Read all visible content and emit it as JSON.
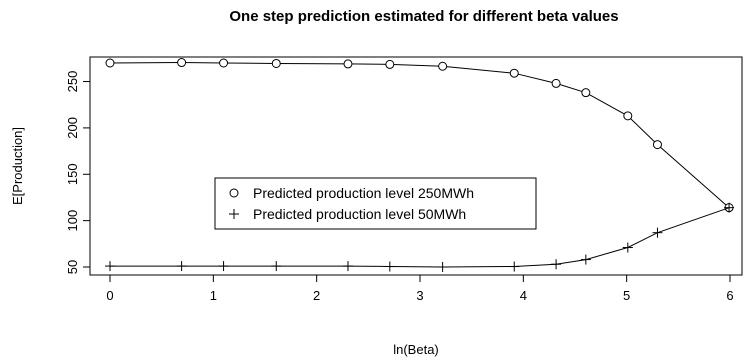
{
  "chart_data": {
    "type": "line",
    "title": "One step prediction estimated for different beta values",
    "xlabel": "ln(Beta)",
    "ylabel": "E[Production]",
    "xlim": [
      0,
      6
    ],
    "ylim": [
      50,
      270
    ],
    "xticks": [
      0,
      1,
      2,
      3,
      4,
      5,
      6
    ],
    "yticks": [
      50,
      100,
      150,
      200,
      250
    ],
    "grid": false,
    "legend_position": "center-left",
    "series": [
      {
        "name": "Predicted production level 250MWh",
        "marker": "circle",
        "x": [
          0,
          0.693,
          1.099,
          1.609,
          2.303,
          2.708,
          3.219,
          3.912,
          4.317,
          4.605,
          5.011,
          5.298,
          5.991
        ],
        "y": [
          270,
          270.5,
          270,
          269.5,
          269,
          268.5,
          266.5,
          259,
          248,
          238,
          213,
          182,
          114
        ]
      },
      {
        "name": "Predicted production level 50MWh",
        "marker": "plus",
        "x": [
          0,
          0.693,
          1.099,
          1.609,
          2.303,
          2.708,
          3.219,
          3.912,
          4.317,
          4.605,
          5.011,
          5.298,
          5.991
        ],
        "y": [
          51,
          51,
          51,
          51,
          51,
          50.5,
          50,
          50.5,
          53,
          58,
          71,
          87,
          114
        ]
      }
    ]
  }
}
